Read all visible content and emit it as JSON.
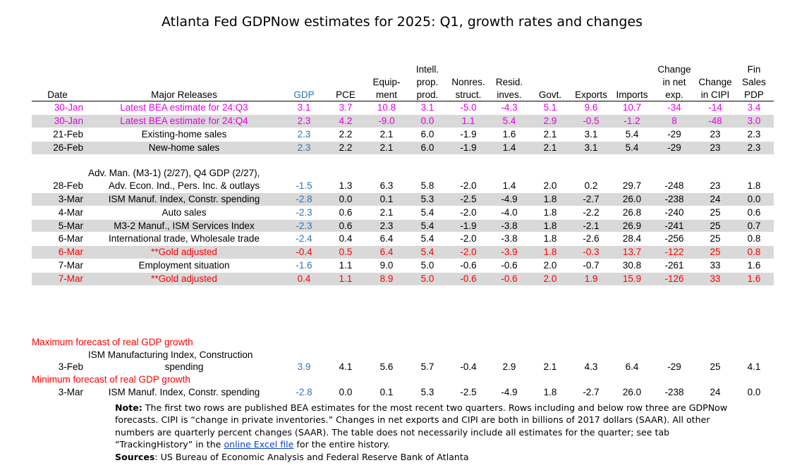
{
  "title": "Atlanta Fed GDPNow estimates for 2025: Q1, growth rates and changes",
  "headers": {
    "date": "Date",
    "releases": "Major Releases",
    "gdp": "GDP",
    "pce": "PCE",
    "equip": [
      "Equip-",
      "ment"
    ],
    "intell": [
      "Intell.",
      "prop.",
      "prod."
    ],
    "nonres": [
      "Nonres.",
      "struct."
    ],
    "resid": [
      "Resid.",
      "inves."
    ],
    "govt": "Govt.",
    "exports": "Exports",
    "imports": "Imports",
    "netexp": [
      "Change",
      "in net",
      "exp."
    ],
    "cipi": [
      "Change",
      "in CIPI"
    ],
    "fsp": [
      "Fin",
      "Sales",
      "PDP"
    ]
  },
  "rows": [
    {
      "date": "30-Jan",
      "release": "Latest BEA estimate for 24:Q3",
      "values": [
        "3.1",
        "3.7",
        "10.8",
        "3.1",
        "-5.0",
        "-4.3",
        "5.1",
        "9.6",
        "10.7",
        "-34",
        "-14",
        "3.4"
      ]
    },
    {
      "date": "30-Jan",
      "release": "Latest BEA estimate for 24:Q4",
      "values": [
        "2.3",
        "4.2",
        "-9.0",
        "0.0",
        "1.1",
        "5.4",
        "2.9",
        "-0.5",
        "-1.2",
        "8",
        "-48",
        "3.0"
      ]
    },
    {
      "date": "21-Feb",
      "release": "Existing-home sales",
      "values": [
        "2.3",
        "2.2",
        "2.1",
        "6.0",
        "-1.9",
        "1.6",
        "2.1",
        "3.1",
        "5.4",
        "-29",
        "23",
        "2.3"
      ]
    },
    {
      "date": "26-Feb",
      "release": "New-home sales",
      "values": [
        "2.3",
        "2.2",
        "2.1",
        "6.0",
        "-1.9",
        "1.4",
        "2.1",
        "3.1",
        "5.4",
        "-29",
        "23",
        "2.3"
      ]
    },
    {
      "date": "28-Feb",
      "release_line1": "Adv. Man. (M3-1) (2/27), Q4 GDP (2/27),",
      "release": "Adv. Econ. Ind., Pers. Inc. & outlays",
      "values": [
        "-1.5",
        "1.3",
        "6.3",
        "5.8",
        "-2.0",
        "1.4",
        "2.0",
        "0.2",
        "29.7",
        "-248",
        "23",
        "1.8"
      ]
    },
    {
      "date": "3-Mar",
      "release": "ISM Manuf. Index, Constr. spending",
      "values": [
        "-2.8",
        "0.0",
        "0.1",
        "5.3",
        "-2.5",
        "-4.9",
        "1.8",
        "-2.7",
        "26.0",
        "-238",
        "24",
        "0.0"
      ]
    },
    {
      "date": "4-Mar",
      "release": "Auto sales",
      "values": [
        "-2.3",
        "0.6",
        "2.1",
        "5.4",
        "-2.0",
        "-4.0",
        "1.8",
        "-2.2",
        "26.8",
        "-240",
        "25",
        "0.6"
      ]
    },
    {
      "date": "5-Mar",
      "release": "M3-2 Manuf., ISM Services Index",
      "values": [
        "-2.3",
        "0.6",
        "2.3",
        "5.4",
        "-1.9",
        "-3.8",
        "1.8",
        "-2.1",
        "26.9",
        "-241",
        "25",
        "0.7"
      ]
    },
    {
      "date": "6-Mar",
      "release": "International trade, Wholesale trade",
      "values": [
        "-2.4",
        "0.4",
        "6.4",
        "5.4",
        "-2.0",
        "-3.8",
        "1.8",
        "-2.6",
        "28.4",
        "-256",
        "25",
        "0.8"
      ]
    },
    {
      "date": "6-Mar",
      "release": "**Gold adjusted",
      "values": [
        "-0.4",
        "0.5",
        "6.4",
        "5.4",
        "-2.0",
        "-3.9",
        "1.8",
        "-0.3",
        "13.7",
        "-122",
        "25",
        "0.8"
      ]
    },
    {
      "date": "7-Mar",
      "release": "Employment situation",
      "values": [
        "-1.6",
        "1.1",
        "9.0",
        "5.0",
        "-0.6",
        "-0.6",
        "2.0",
        "-0.7",
        "30.8",
        "-261",
        "33",
        "1.6"
      ]
    },
    {
      "date": "7-Mar",
      "release": "**Gold adjusted",
      "values": [
        "0.4",
        "1.1",
        "8.9",
        "5.0",
        "-0.6",
        "-0.6",
        "2.0",
        "1.9",
        "15.9",
        "-126",
        "33",
        "1.6"
      ]
    }
  ],
  "max_forecast": {
    "label": "Maximum forecast of real GDP growth",
    "date": "3-Feb",
    "release_line1": "ISM Manufacturing Index, Construction",
    "release": "spending",
    "values": [
      "3.9",
      "4.1",
      "5.6",
      "5.7",
      "-0.4",
      "2.9",
      "2.1",
      "4.3",
      "6.4",
      "-29",
      "25",
      "4.1"
    ]
  },
  "min_forecast": {
    "label": "Minimum forecast of real GDP growth",
    "date": "3-Mar",
    "release": "ISM Manuf. Index, Constr. spending",
    "values": [
      "-2.8",
      "0.0",
      "0.1",
      "5.3",
      "-2.5",
      "-4.9",
      "1.8",
      "-2.7",
      "26.0",
      "-238",
      "24",
      "0.0"
    ]
  },
  "note": {
    "label": "Note:",
    "text1": " The first two rows are published BEA estimates for the most recent two quarters. Rows including and below row three are GDPNow forecasts. CIPI is “change in private inventories.” Changes in net exports and CIPI are both in billions of 2017 dollars (SAAR). All other numbers are quarterly percent changes (SAAR). The table does not necessarily include all estimates for the quarter; see tab “TrackingHistory” in the ",
    "link": "online Excel file",
    "text2": " for the entire history.",
    "sources_label": "Sources",
    "sources_text": ": US Bureau of Economic Analysis and Federal Reserve Bank of Atlanta"
  },
  "colors": {
    "gdp_blue": "#2e75b6",
    "bea_magenta": "#e600e6",
    "gold_red": "#ff0000",
    "row_gray": "#d9d9d9"
  }
}
